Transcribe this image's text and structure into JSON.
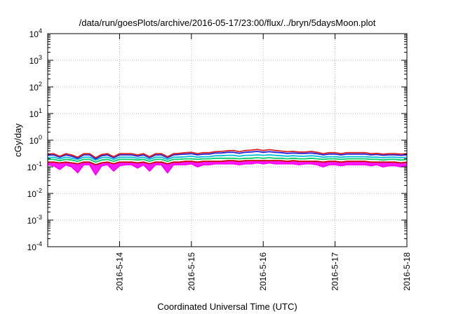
{
  "chart_data": {
    "type": "line",
    "title": "/data/run/goesPlots/archive/2016-05-17/23:00/flux/../bryn/5daysMoon.plot",
    "xlabel": "Coordinated Universal Time (UTC)",
    "ylabel": "cGy/day",
    "y_scale": "log",
    "ylim": [
      0.0001,
      10000
    ],
    "y_ticks": [
      {
        "base": "10",
        "exp": "-4"
      },
      {
        "base": "10",
        "exp": "-3"
      },
      {
        "base": "10",
        "exp": "-2"
      },
      {
        "base": "10",
        "exp": "-1"
      },
      {
        "base": "10",
        "exp": "0"
      },
      {
        "base": "10",
        "exp": "1"
      },
      {
        "base": "10",
        "exp": "2"
      },
      {
        "base": "10",
        "exp": "3"
      },
      {
        "base": "10",
        "exp": "4"
      }
    ],
    "xlim": [
      "2016-05-13 00:00",
      "2016-05-18 00:00"
    ],
    "x_ticks": [
      "2016-5-14",
      "2016-5-15",
      "2016-5-16",
      "2016-5-17",
      "2016-5-18"
    ],
    "grid": true,
    "legend": "none",
    "series": [
      {
        "color": "#ff00ff",
        "fill": true,
        "values": [
          0.12,
          0.11,
          0.08,
          0.12,
          0.1,
          0.06,
          0.12,
          0.12,
          0.05,
          0.11,
          0.12,
          0.07,
          0.11,
          0.12,
          0.12,
          0.09,
          0.12,
          0.07,
          0.12,
          0.12,
          0.06,
          0.12,
          0.12,
          0.12,
          0.13,
          0.1,
          0.12,
          0.12,
          0.13,
          0.13,
          0.13,
          0.13,
          0.12,
          0.13,
          0.13,
          0.14,
          0.13,
          0.14,
          0.13,
          0.13,
          0.13,
          0.13,
          0.12,
          0.13,
          0.13,
          0.12,
          0.1,
          0.12,
          0.12,
          0.11,
          0.12,
          0.12,
          0.12,
          0.12,
          0.11,
          0.12,
          0.1,
          0.11,
          0.11,
          0.1,
          0.11
        ]
      },
      {
        "color": "#cc0000",
        "values": [
          0.15,
          0.15,
          0.14,
          0.15,
          0.14,
          0.13,
          0.15,
          0.15,
          0.12,
          0.14,
          0.15,
          0.13,
          0.15,
          0.15,
          0.15,
          0.14,
          0.15,
          0.13,
          0.15,
          0.15,
          0.13,
          0.15,
          0.15,
          0.16,
          0.16,
          0.15,
          0.16,
          0.16,
          0.16,
          0.16,
          0.17,
          0.17,
          0.16,
          0.17,
          0.17,
          0.17,
          0.17,
          0.17,
          0.17,
          0.17,
          0.16,
          0.17,
          0.16,
          0.16,
          0.16,
          0.16,
          0.15,
          0.16,
          0.16,
          0.15,
          0.16,
          0.16,
          0.16,
          0.16,
          0.15,
          0.15,
          0.15,
          0.15,
          0.15,
          0.14,
          0.15
        ]
      },
      {
        "color": "#00cc66",
        "values": [
          0.19,
          0.19,
          0.17,
          0.19,
          0.18,
          0.16,
          0.19,
          0.19,
          0.15,
          0.18,
          0.19,
          0.16,
          0.19,
          0.19,
          0.19,
          0.18,
          0.19,
          0.16,
          0.19,
          0.19,
          0.16,
          0.19,
          0.19,
          0.2,
          0.2,
          0.19,
          0.2,
          0.2,
          0.21,
          0.21,
          0.21,
          0.21,
          0.2,
          0.21,
          0.21,
          0.22,
          0.21,
          0.22,
          0.21,
          0.21,
          0.2,
          0.21,
          0.2,
          0.2,
          0.21,
          0.2,
          0.19,
          0.2,
          0.2,
          0.19,
          0.2,
          0.2,
          0.2,
          0.2,
          0.19,
          0.19,
          0.18,
          0.19,
          0.19,
          0.18,
          0.19
        ]
      },
      {
        "color": "#00bbdd",
        "values": [
          0.22,
          0.23,
          0.2,
          0.23,
          0.21,
          0.19,
          0.23,
          0.23,
          0.18,
          0.22,
          0.23,
          0.19,
          0.23,
          0.23,
          0.23,
          0.21,
          0.23,
          0.19,
          0.23,
          0.23,
          0.19,
          0.23,
          0.23,
          0.24,
          0.25,
          0.23,
          0.24,
          0.24,
          0.26,
          0.26,
          0.27,
          0.27,
          0.25,
          0.27,
          0.27,
          0.28,
          0.27,
          0.28,
          0.27,
          0.26,
          0.25,
          0.26,
          0.25,
          0.25,
          0.26,
          0.25,
          0.23,
          0.24,
          0.24,
          0.23,
          0.24,
          0.24,
          0.24,
          0.24,
          0.23,
          0.23,
          0.22,
          0.23,
          0.23,
          0.22,
          0.23
        ]
      },
      {
        "color": "#2222dd",
        "values": [
          0.27,
          0.28,
          0.23,
          0.28,
          0.25,
          0.21,
          0.28,
          0.28,
          0.2,
          0.26,
          0.28,
          0.22,
          0.28,
          0.28,
          0.28,
          0.25,
          0.28,
          0.22,
          0.28,
          0.28,
          0.22,
          0.28,
          0.29,
          0.3,
          0.31,
          0.28,
          0.3,
          0.3,
          0.33,
          0.33,
          0.35,
          0.35,
          0.32,
          0.35,
          0.36,
          0.38,
          0.35,
          0.37,
          0.35,
          0.34,
          0.32,
          0.33,
          0.32,
          0.32,
          0.33,
          0.31,
          0.28,
          0.3,
          0.3,
          0.28,
          0.3,
          0.3,
          0.3,
          0.3,
          0.28,
          0.29,
          0.27,
          0.28,
          0.28,
          0.27,
          0.28
        ]
      },
      {
        "color": "#dd2222",
        "values": [
          0.3,
          0.31,
          0.25,
          0.31,
          0.28,
          0.23,
          0.31,
          0.31,
          0.22,
          0.29,
          0.31,
          0.24,
          0.31,
          0.31,
          0.31,
          0.28,
          0.31,
          0.24,
          0.31,
          0.31,
          0.24,
          0.31,
          0.32,
          0.34,
          0.35,
          0.31,
          0.34,
          0.34,
          0.37,
          0.38,
          0.4,
          0.41,
          0.37,
          0.41,
          0.42,
          0.45,
          0.41,
          0.44,
          0.41,
          0.39,
          0.37,
          0.38,
          0.36,
          0.36,
          0.38,
          0.35,
          0.31,
          0.34,
          0.34,
          0.31,
          0.34,
          0.34,
          0.34,
          0.34,
          0.31,
          0.32,
          0.3,
          0.31,
          0.31,
          0.3,
          0.31
        ]
      }
    ]
  }
}
